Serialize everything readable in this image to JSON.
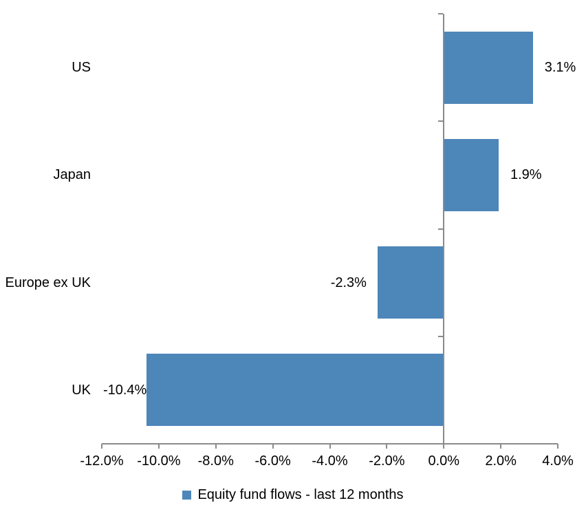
{
  "chart_data": {
    "type": "bar",
    "orientation": "horizontal",
    "title": "",
    "categories": [
      "US",
      "Japan",
      "Europe ex UK",
      "UK"
    ],
    "values": [
      3.1,
      1.9,
      -2.3,
      -10.4
    ],
    "value_labels": [
      "3.1%",
      "1.9%",
      "-2.3%",
      "-10.4%"
    ],
    "value_label_gaps": [
      18,
      18,
      17,
      1
    ],
    "xlim": [
      -12,
      4
    ],
    "x_ticks": [
      -12,
      -10,
      -8,
      -6,
      -4,
      -2,
      0,
      2,
      4
    ],
    "x_tick_labels": [
      "-12.0%",
      "-10.0%",
      "-8.0%",
      "-6.0%",
      "-4.0%",
      "-2.0%",
      "0.0%",
      "2.0%",
      "4.0%"
    ],
    "grid": false,
    "legend": {
      "position": "bottom",
      "label": "Equity fund flows - last 12 months"
    },
    "colors": {
      "bar": "#4d86b9",
      "axis": "#8a8a8a",
      "text": "#000000"
    }
  }
}
